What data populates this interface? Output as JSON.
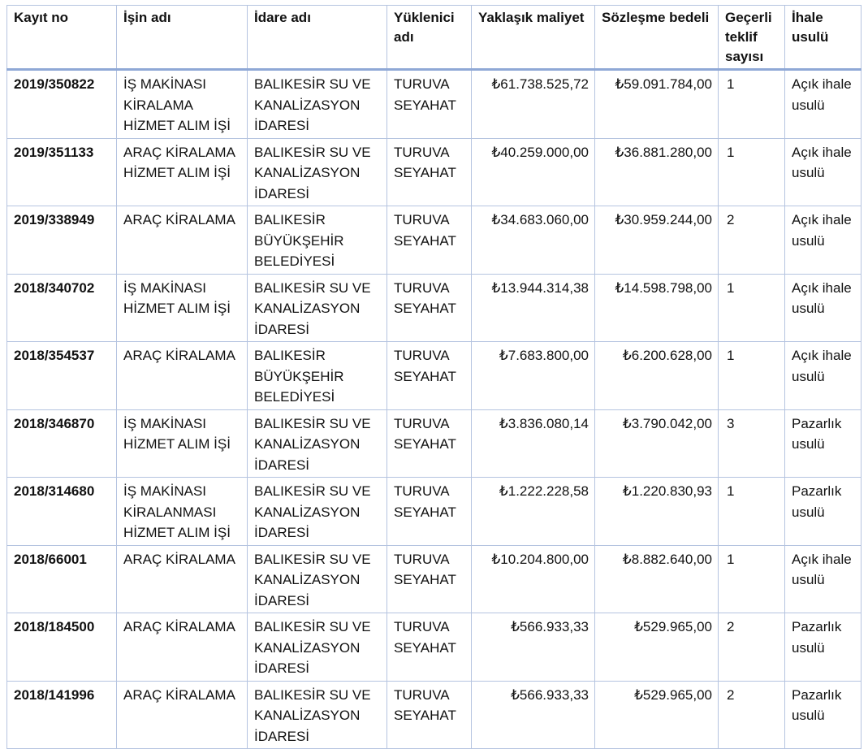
{
  "table": {
    "headers": [
      "Kayıt no",
      "İşin adı",
      "İdare adı",
      "Yüklenici adı",
      "Yaklaşık maliyet",
      "Sözleşme bedeli",
      "Geçerli teklif sayısı",
      "İhale usulü"
    ],
    "rows": [
      {
        "kayit": "2019/350822",
        "isin": "İŞ MAKİNASI KİRALAMA HİZMET ALIM İŞİ",
        "idare": "BALIKESİR SU VE KANALİZASYON İDARESİ",
        "yuklenici": "TURUVA SEYAHAT",
        "maliyet": "₺61.738.525,72",
        "bedel": "₺59.091.784,00",
        "teklif": "1",
        "usul": "Açık ihale usulü"
      },
      {
        "kayit": "2019/351133",
        "isin": "ARAÇ KİRALAMA HİZMET ALIM İŞİ",
        "idare": "BALIKESİR SU VE KANALİZASYON İDARESİ",
        "yuklenici": "TURUVA SEYAHAT",
        "maliyet": "₺40.259.000,00",
        "bedel": "₺36.881.280,00",
        "teklif": "1",
        "usul": "Açık ihale usulü"
      },
      {
        "kayit": "2019/338949",
        "isin": "ARAÇ KİRALAMA",
        "idare": "BALIKESİR BÜYÜKŞEHİR BELEDİYESİ",
        "yuklenici": "TURUVA SEYAHAT",
        "maliyet": "₺34.683.060,00",
        "bedel": "₺30.959.244,00",
        "teklif": "2",
        "usul": "Açık ihale usulü"
      },
      {
        "kayit": "2018/340702",
        "isin": "İŞ MAKİNASI HİZMET ALIM İŞİ",
        "idare": "BALIKESİR SU VE KANALİZASYON İDARESİ",
        "yuklenici": "TURUVA SEYAHAT",
        "maliyet": "₺13.944.314,38",
        "bedel": "₺14.598.798,00",
        "teklif": "1",
        "usul": "Açık ihale usulü"
      },
      {
        "kayit": "2018/354537",
        "isin": "ARAÇ KİRALAMA",
        "idare": "BALIKESİR BÜYÜKŞEHİR BELEDİYESİ",
        "yuklenici": "TURUVA SEYAHAT",
        "maliyet": "₺7.683.800,00",
        "bedel": "₺6.200.628,00",
        "teklif": "1",
        "usul": "Açık ihale usulü"
      },
      {
        "kayit": "2018/346870",
        "isin": "İŞ MAKİNASI HİZMET ALIM İŞİ",
        "idare": "BALIKESİR SU VE KANALİZASYON İDARESİ",
        "yuklenici": "TURUVA SEYAHAT",
        "maliyet": "₺3.836.080,14",
        "bedel": "₺3.790.042,00",
        "teklif": "3",
        "usul": "Pazarlık usulü"
      },
      {
        "kayit": "2018/314680",
        "isin": "İŞ MAKİNASI KİRALANMASI HİZMET ALIM İŞİ",
        "idare": "BALIKESİR SU VE KANALİZASYON İDARESİ",
        "yuklenici": "TURUVA SEYAHAT",
        "maliyet": "₺1.222.228,58",
        "bedel": "₺1.220.830,93",
        "teklif": "1",
        "usul": "Pazarlık usulü"
      },
      {
        "kayit": "2018/66001",
        "isin": "ARAÇ KİRALAMA",
        "idare": "BALIKESİR SU VE KANALİZASYON İDARESİ",
        "yuklenici": "TURUVA SEYAHAT",
        "maliyet": "₺10.204.800,00",
        "bedel": "₺8.882.640,00",
        "teklif": "1",
        "usul": "Açık ihale usulü"
      },
      {
        "kayit": "2018/184500",
        "isin": "ARAÇ KİRALAMA",
        "idare": "BALIKESİR SU VE KANALİZASYON İDARESİ",
        "yuklenici": "TURUVA SEYAHAT",
        "maliyet": "₺566.933,33",
        "bedel": "₺529.965,00",
        "teklif": "2",
        "usul": "Pazarlık usulü"
      },
      {
        "kayit": "2018/141996",
        "isin": "ARAÇ KİRALAMA",
        "idare": "BALIKESİR SU VE KANALİZASYON İDARESİ",
        "yuklenici": "TURUVA SEYAHAT",
        "maliyet": "₺566.933,33",
        "bedel": "₺529.965,00",
        "teklif": "2",
        "usul": "Pazarlık usulü"
      }
    ]
  }
}
